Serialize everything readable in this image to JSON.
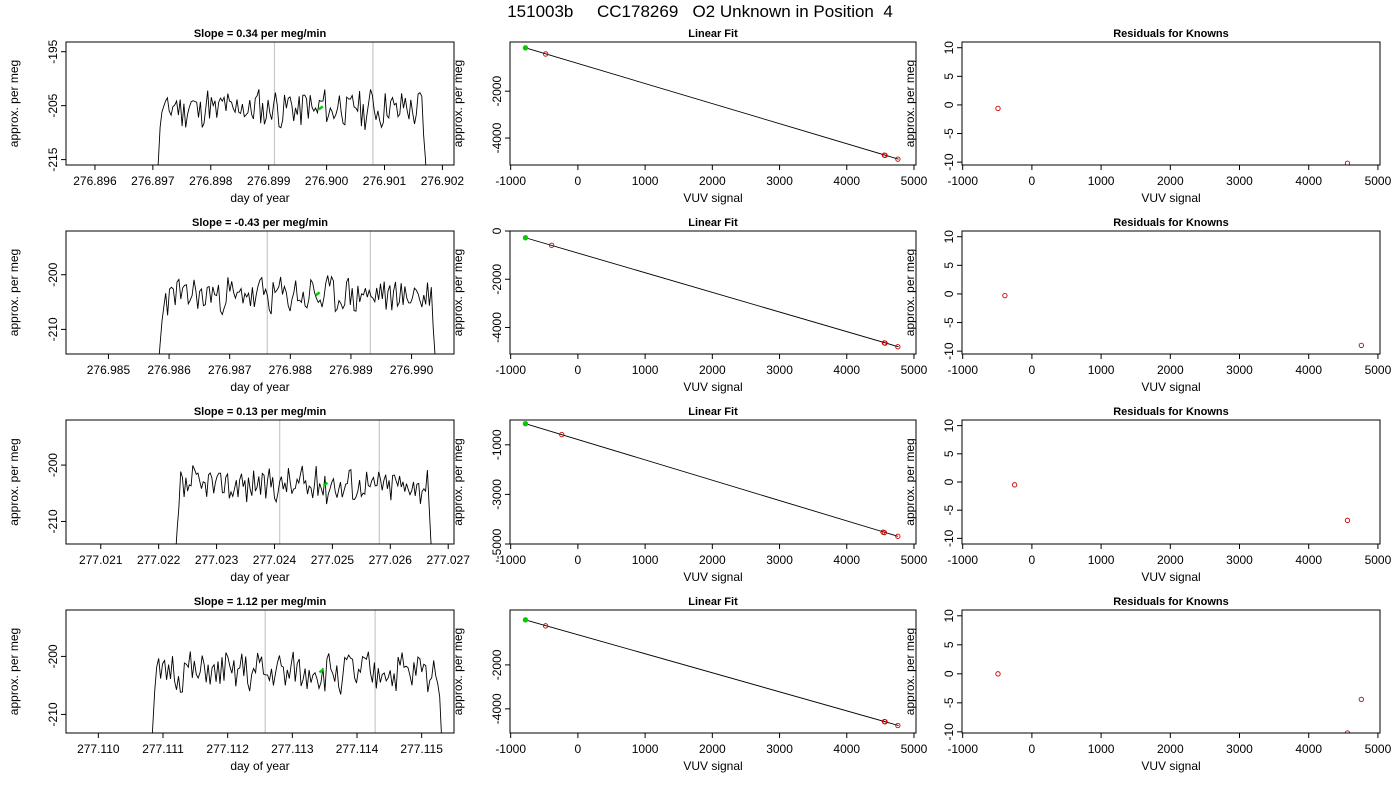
{
  "figure_title": "151003b     CC178269   O2 Unknown in Position  4",
  "colors": {
    "trace": "#000000",
    "unknown_point": "#00cc00",
    "known_point": "#cc0000",
    "marker_line": "#c8c8c8"
  },
  "chart_data": [
    {
      "type": "line",
      "row": 0,
      "col": 0,
      "title": "Slope =  0.34  per meg/min",
      "xlabel": "day of year",
      "ylabel": "approx. per meg",
      "xlim": [
        276.8955,
        276.9022
      ],
      "ylim": [
        -216,
        -193.2
      ],
      "xticks": [
        276.896,
        276.897,
        276.898,
        276.899,
        276.9,
        276.901,
        276.902
      ],
      "xtick_labels": [
        "276.896",
        "276.897",
        "276.898",
        "276.899",
        "276.900",
        "276.901",
        "276.902"
      ],
      "yticks": [
        -195,
        -205,
        -215
      ],
      "ytick_labels": [
        "-195",
        "-205",
        "-215"
      ],
      "trace": {
        "x_start": 276.89703,
        "x_end": 276.90177,
        "base": -205.5,
        "amp": 3.2,
        "n": 150,
        "seed": 11
      },
      "marker_lines_x": [
        276.8991,
        276.9008
      ],
      "unknown_point": [
        276.8999,
        -205.4
      ]
    },
    {
      "type": "line",
      "row": 0,
      "col": 1,
      "title": "Linear Fit",
      "xlabel": "VUV signal",
      "ylabel": "approx. per meg",
      "xlim": [
        -1010,
        5030
      ],
      "ylim": [
        -5150,
        100
      ],
      "xticks": [
        -1000,
        0,
        1000,
        2000,
        3000,
        4000,
        5000
      ],
      "xtick_labels": [
        "-1000",
        "0",
        "1000",
        "2000",
        "3000",
        "4000",
        "5000"
      ],
      "yticks": [
        -2000,
        -4000
      ],
      "ytick_labels": [
        "-2000",
        "-4000"
      ],
      "fit_line": [
        [
          -780,
          -150
        ],
        [
          4770,
          -4900
        ]
      ],
      "unknown_point": [
        -780,
        -150
      ],
      "known_points": [
        [
          -480,
          -410
        ],
        [
          4560,
          -4730
        ],
        [
          4570,
          -4740
        ],
        [
          4760,
          -4900
        ]
      ]
    },
    {
      "type": "scatter",
      "row": 0,
      "col": 2,
      "title": "Residuals for Knowns",
      "xlabel": "VUV signal",
      "ylabel": "approx. per meg",
      "xlim": [
        -1010,
        5030
      ],
      "ylim": [
        -10.5,
        11
      ],
      "xticks": [
        -1000,
        0,
        1000,
        2000,
        3000,
        4000,
        5000
      ],
      "xtick_labels": [
        "-1000",
        "0",
        "1000",
        "2000",
        "3000",
        "4000",
        "5000"
      ],
      "yticks": [
        10,
        5,
        0,
        -5,
        -10
      ],
      "ytick_labels": [
        "10",
        "5",
        "0",
        "-5",
        "-10"
      ],
      "known_points": [
        [
          -490,
          -0.6
        ],
        [
          4560,
          -10.2
        ]
      ]
    },
    {
      "type": "line",
      "row": 1,
      "col": 0,
      "title": "Slope =  -0.43  per meg/min",
      "xlabel": "day of year",
      "ylabel": "approx. per meg",
      "xlim": [
        276.9843,
        276.9907
      ],
      "ylim": [
        -214.5,
        -192
      ],
      "xticks": [
        276.985,
        276.986,
        276.987,
        276.988,
        276.989,
        276.99
      ],
      "xtick_labels": [
        "276.985",
        "276.986",
        "276.987",
        "276.988",
        "276.989",
        "276.990"
      ],
      "yticks": [
        -200,
        -210
      ],
      "ytick_labels": [
        "-200",
        "-210"
      ],
      "trace": {
        "x_start": 276.98579,
        "x_end": 276.99045,
        "base": -203.8,
        "amp": 3.0,
        "n": 150,
        "seed": 23
      },
      "marker_lines_x": [
        276.98762,
        276.98932
      ],
      "unknown_point": [
        276.98845,
        -203.5
      ]
    },
    {
      "type": "line",
      "row": 1,
      "col": 1,
      "title": "Linear Fit",
      "xlabel": "VUV signal",
      "ylabel": "approx. per meg",
      "xlim": [
        -1010,
        5030
      ],
      "ylim": [
        -5100,
        0
      ],
      "xticks": [
        -1000,
        0,
        1000,
        2000,
        3000,
        4000,
        5000
      ],
      "xtick_labels": [
        "-1000",
        "0",
        "1000",
        "2000",
        "3000",
        "4000",
        "5000"
      ],
      "yticks": [
        0,
        -2000,
        -4000
      ],
      "ytick_labels": [
        "0",
        "-2000",
        "-4000"
      ],
      "fit_line": [
        [
          -780,
          -280
        ],
        [
          4770,
          -4800
        ]
      ],
      "unknown_point": [
        -780,
        -280
      ],
      "known_points": [
        [
          -390,
          -590
        ],
        [
          4560,
          -4640
        ],
        [
          4570,
          -4650
        ],
        [
          4760,
          -4800
        ]
      ]
    },
    {
      "type": "scatter",
      "row": 1,
      "col": 2,
      "title": "Residuals for Knowns",
      "xlabel": "VUV signal",
      "ylabel": "approx. per meg",
      "xlim": [
        -1010,
        5030
      ],
      "ylim": [
        -10.5,
        11
      ],
      "xticks": [
        -1000,
        0,
        1000,
        2000,
        3000,
        4000,
        5000
      ],
      "xtick_labels": [
        "-1000",
        "0",
        "1000",
        "2000",
        "3000",
        "4000",
        "5000"
      ],
      "yticks": [
        10,
        5,
        0,
        -5,
        -10
      ],
      "ytick_labels": [
        "10",
        "5",
        "0",
        "-5",
        "-10"
      ],
      "known_points": [
        [
          -390,
          -0.3
        ],
        [
          4760,
          -9.0
        ]
      ]
    },
    {
      "type": "line",
      "row": 2,
      "col": 0,
      "title": "Slope =  0.13  per meg/min",
      "xlabel": "day of year",
      "ylabel": "approx. per meg",
      "xlim": [
        277.0204,
        277.0271
      ],
      "ylim": [
        -214,
        -192
      ],
      "xticks": [
        277.021,
        277.022,
        277.023,
        277.024,
        277.025,
        277.026,
        277.027
      ],
      "xtick_labels": [
        "277.021",
        "277.022",
        "277.023",
        "277.024",
        "277.025",
        "277.026",
        "277.027"
      ],
      "yticks": [
        -200,
        -210
      ],
      "ytick_labels": [
        "-200",
        "-210"
      ],
      "trace": {
        "x_start": 277.02226,
        "x_end": 277.02676,
        "base": -203.5,
        "amp": 2.8,
        "n": 150,
        "seed": 37
      },
      "marker_lines_x": [
        277.02409,
        277.02581
      ],
      "unknown_point": [
        277.02488,
        -203.4
      ]
    },
    {
      "type": "line",
      "row": 2,
      "col": 1,
      "title": "Linear Fit",
      "xlabel": "VUV signal",
      "ylabel": "approx. per meg",
      "xlim": [
        -1010,
        5030
      ],
      "ylim": [
        -5000,
        0
      ],
      "xticks": [
        -1000,
        0,
        1000,
        2000,
        3000,
        4000,
        5000
      ],
      "xtick_labels": [
        "-1000",
        "0",
        "1000",
        "2000",
        "3000",
        "4000",
        "5000"
      ],
      "yticks": [
        -1000,
        -3000,
        -5000
      ],
      "ytick_labels": [
        "-1000",
        "-3000",
        "-5000"
      ],
      "fit_line": [
        [
          -780,
          -150
        ],
        [
          4760,
          -4690
        ]
      ],
      "unknown_point": [
        -780,
        -150
      ],
      "known_points": [
        [
          -240,
          -590
        ],
        [
          4540,
          -4520
        ],
        [
          4560,
          -4540
        ],
        [
          4760,
          -4690
        ]
      ]
    },
    {
      "type": "scatter",
      "row": 2,
      "col": 2,
      "title": "Residuals for Knowns",
      "xlabel": "VUV signal",
      "ylabel": "approx. per meg",
      "xlim": [
        -1010,
        5030
      ],
      "ylim": [
        -11,
        11
      ],
      "xticks": [
        -1000,
        0,
        1000,
        2000,
        3000,
        4000,
        5000
      ],
      "xtick_labels": [
        "-1000",
        "0",
        "1000",
        "2000",
        "3000",
        "4000",
        "5000"
      ],
      "yticks": [
        10,
        5,
        0,
        -5,
        -10
      ],
      "ytick_labels": [
        "10",
        "5",
        "0",
        "-5",
        "-10"
      ],
      "known_points": [
        [
          -250,
          -0.5
        ],
        [
          4560,
          -6.8
        ]
      ]
    },
    {
      "type": "line",
      "row": 3,
      "col": 0,
      "title": "Slope =  1.12  per meg/min",
      "xlabel": "day of year",
      "ylabel": "approx. per meg",
      "xlim": [
        277.1095,
        277.1155
      ],
      "ylim": [
        -213.2,
        -192
      ],
      "xticks": [
        277.11,
        277.111,
        277.112,
        277.113,
        277.114,
        277.115
      ],
      "xtick_labels": [
        "277.110",
        "277.111",
        "277.112",
        "277.113",
        "277.114",
        "277.115"
      ],
      "yticks": [
        -200,
        -210
      ],
      "ytick_labels": [
        "-200",
        "-210"
      ],
      "trace": {
        "x_start": 277.11078,
        "x_end": 277.11537,
        "base": -202.8,
        "amp": 3.0,
        "n": 150,
        "seed": 51
      },
      "marker_lines_x": [
        277.11258,
        277.11428
      ],
      "unknown_point": [
        277.11345,
        -202.5
      ]
    },
    {
      "type": "line",
      "row": 3,
      "col": 1,
      "title": "Linear Fit",
      "xlabel": "VUV signal",
      "ylabel": "approx. per meg",
      "xlim": [
        -1010,
        5030
      ],
      "ylim": [
        -5100,
        500
      ],
      "xticks": [
        -1000,
        0,
        1000,
        2000,
        3000,
        4000,
        5000
      ],
      "xtick_labels": [
        "-1000",
        "0",
        "1000",
        "2000",
        "3000",
        "4000",
        "5000"
      ],
      "yticks": [
        -2000,
        -4000
      ],
      "ytick_labels": [
        "-2000",
        "-4000"
      ],
      "fit_line": [
        [
          -780,
          50
        ],
        [
          4770,
          -4760
        ]
      ],
      "unknown_point": [
        -780,
        50
      ],
      "known_points": [
        [
          -480,
          -220
        ],
        [
          4560,
          -4580
        ],
        [
          4570,
          -4590
        ],
        [
          4760,
          -4760
        ]
      ]
    },
    {
      "type": "scatter",
      "row": 3,
      "col": 2,
      "title": "Residuals for Knowns",
      "xlabel": "VUV signal",
      "ylabel": "approx. per meg",
      "xlim": [
        -1010,
        5030
      ],
      "ylim": [
        -10.2,
        11
      ],
      "xticks": [
        -1000,
        0,
        1000,
        2000,
        3000,
        4000,
        5000
      ],
      "xtick_labels": [
        "-1000",
        "0",
        "1000",
        "2000",
        "3000",
        "4000",
        "5000"
      ],
      "yticks": [
        10,
        5,
        0,
        -5,
        -10
      ],
      "ytick_labels": [
        "10",
        "5",
        "0",
        "-5",
        "-10"
      ],
      "known_points": [
        [
          -490,
          0.0
        ],
        [
          4560,
          -10.2
        ],
        [
          4760,
          -4.4
        ]
      ]
    }
  ]
}
